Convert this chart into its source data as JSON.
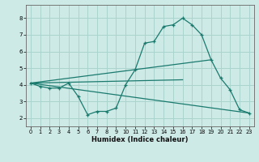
{
  "xlabel": "Humidex (Indice chaleur)",
  "background_color": "#ceeae6",
  "grid_color": "#aad4ce",
  "line_color": "#1a7a6e",
  "xlim": [
    -0.5,
    23.5
  ],
  "ylim": [
    1.5,
    8.8
  ],
  "xticks": [
    0,
    1,
    2,
    3,
    4,
    5,
    6,
    7,
    8,
    9,
    10,
    11,
    12,
    13,
    14,
    15,
    16,
    17,
    18,
    19,
    20,
    21,
    22,
    23
  ],
  "yticks": [
    2,
    3,
    4,
    5,
    6,
    7,
    8
  ],
  "main_series": {
    "x": [
      0,
      1,
      2,
      3,
      4,
      5,
      6,
      7,
      8,
      9,
      10,
      11,
      12,
      13,
      14,
      15,
      16,
      17,
      18,
      19,
      20,
      21,
      22,
      23
    ],
    "y": [
      4.1,
      3.9,
      3.8,
      3.8,
      4.1,
      3.3,
      2.2,
      2.4,
      2.4,
      2.6,
      4.0,
      4.9,
      6.5,
      6.6,
      7.5,
      7.6,
      8.0,
      7.6,
      7.0,
      5.5,
      4.4,
      3.7,
      2.5,
      2.3
    ]
  },
  "straight_lines": [
    {
      "x": [
        0,
        23
      ],
      "y": [
        4.1,
        2.3
      ]
    },
    {
      "x": [
        0,
        19
      ],
      "y": [
        4.1,
        5.5
      ]
    },
    {
      "x": [
        0,
        16
      ],
      "y": [
        4.1,
        4.3
      ]
    }
  ]
}
